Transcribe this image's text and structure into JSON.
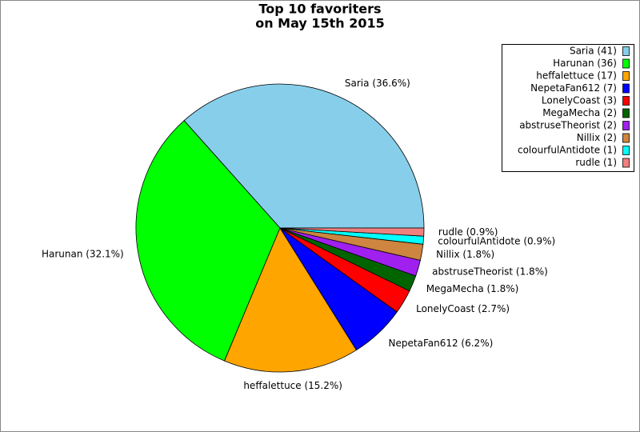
{
  "chart_data": {
    "type": "pie",
    "title": [
      "Top 10 favoriters",
      "on May 15th 2015"
    ],
    "categories": [
      "Saria (41)",
      "Harunan (36)",
      "heffalettuce (17)",
      "NepetaFan612 (7)",
      "LonelyCoast (3)",
      "MegaMecha (2)",
      "abstruseTheorist (2)",
      "Nillix (2)",
      "colourfulAntidote (1)",
      "rudle (1)"
    ],
    "values": [
      36.6,
      32.1,
      15.2,
      6.2,
      2.7,
      1.8,
      1.8,
      1.8,
      0.9,
      0.9
    ],
    "value_labels": [
      "Saria (36.6%)",
      "Harunan (32.1%)",
      "heffalettuce (15.2%)",
      "NepetaFan612 (6.2%)",
      "LonelyCoast (2.7%)",
      "MegaMecha (1.8%)",
      "abstruseTheorist (1.8%)",
      "Nillix (1.8%)",
      "colourfulAntidote (0.9%)",
      "rudle (0.9%)"
    ],
    "colors": [
      "#87ceeb",
      "#00ff00",
      "#ffa500",
      "#0000ff",
      "#ff0000",
      "#006400",
      "#a020f0",
      "#cd853f",
      "#00ffff",
      "#f08080"
    ],
    "legend": "upper right"
  }
}
